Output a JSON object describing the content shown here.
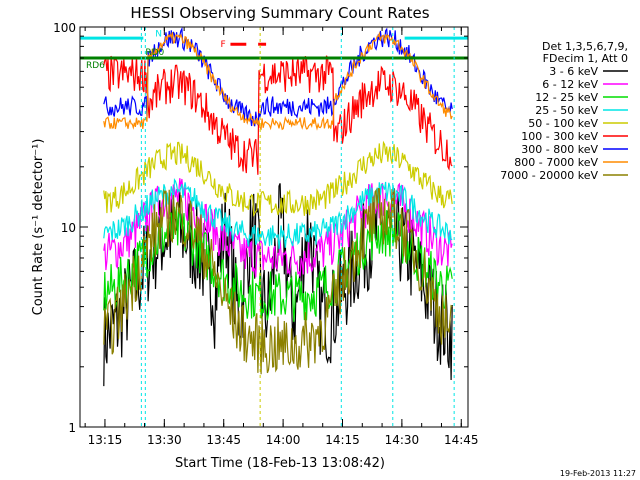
{
  "chart_data": {
    "type": "line",
    "title": "HESSI Observing Summary Count Rates",
    "xlabel": "Start Time (18-Feb-13 13:08:42)",
    "ylabel": "Count Rate (s⁻¹ detector⁻¹)",
    "yscale": "log",
    "ylim": [
      1,
      100
    ],
    "xlim_minutes": [
      0,
      98
    ],
    "x_ticks": [
      "13:15",
      "13:30",
      "13:45",
      "14:00",
      "14:15",
      "14:30",
      "14:45"
    ],
    "y_ticks": [
      "1",
      "10",
      "100"
    ],
    "timestamp": "19-Feb-2013 11:27",
    "legend_header": [
      "Det 1,3,5,6,7,9,",
      "FDecim 1, Att 0"
    ],
    "flags": [
      {
        "label": "N",
        "color": "#00e5e5"
      },
      {
        "label": "RD0",
        "color": "#008000"
      },
      {
        "label": "RD6",
        "color": "#008000"
      },
      {
        "label": "F",
        "color": "#ff0000"
      }
    ],
    "series": [
      {
        "name": "3 - 6 keV",
        "color": "#000000"
      },
      {
        "name": "6 - 12 keV",
        "color": "#ff00ff"
      },
      {
        "name": "12 - 25 keV",
        "color": "#00dd00"
      },
      {
        "name": "25 - 50 keV",
        "color": "#00e5e5"
      },
      {
        "name": "50 - 100 keV",
        "color": "#cccc00"
      },
      {
        "name": "100 - 300 keV",
        "color": "#ff0000"
      },
      {
        "name": "300 - 800 keV",
        "color": "#0000ff"
      },
      {
        "name": "800 - 7000 keV",
        "color": "#ff8c00"
      },
      {
        "name": "7000 - 20000 keV",
        "color": "#8b8000"
      }
    ]
  }
}
